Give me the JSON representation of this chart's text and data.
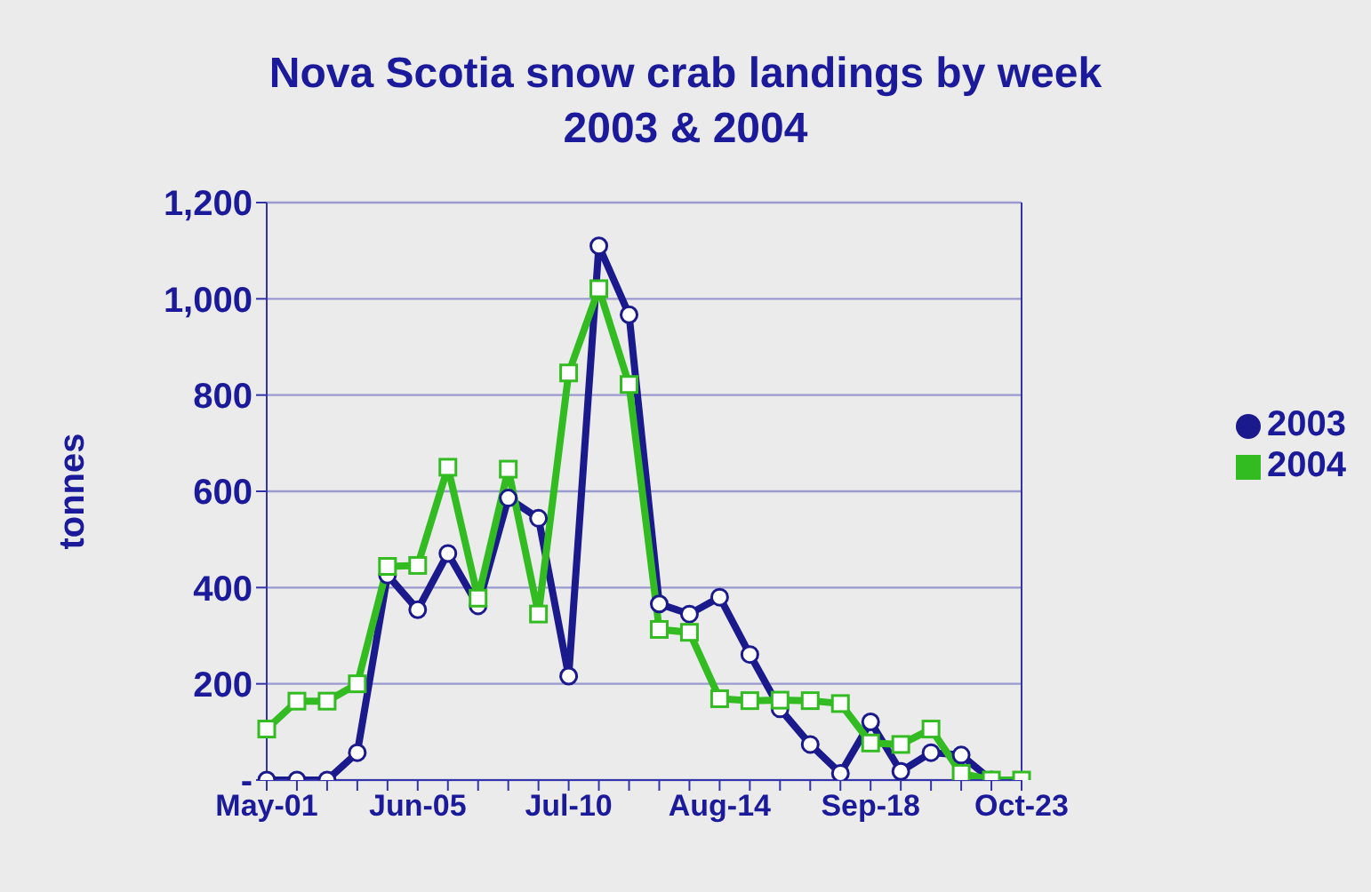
{
  "chart_data": {
    "type": "line",
    "title": "Nova Scotia snow crab landings by week",
    "subtitle": "2003 & 2004",
    "ylabel": "tonnes",
    "categories": [
      "May-01",
      null,
      null,
      null,
      null,
      "Jun-05",
      null,
      null,
      null,
      null,
      "Jul-10",
      null,
      null,
      null,
      null,
      "Aug-14",
      null,
      null,
      null,
      null,
      "Sep-18",
      null,
      null,
      null,
      null,
      "Oct-23"
    ],
    "series": [
      {
        "name": "2003",
        "color": "#1a1a8c",
        "marker": "circle",
        "values": [
          0,
          0,
          0,
          57,
          426,
          354,
          471,
          362,
          586,
          544,
          216,
          1110,
          967,
          366,
          345,
          380,
          261,
          148,
          74,
          14,
          121,
          18,
          57,
          52,
          0,
          null
        ]
      },
      {
        "name": "2004",
        "color": "#33bb22",
        "marker": "square",
        "values": [
          106,
          164,
          164,
          200,
          444,
          446,
          650,
          378,
          646,
          345,
          846,
          1021,
          822,
          313,
          307,
          169,
          165,
          166,
          165,
          159,
          77,
          74,
          106,
          14,
          0,
          0
        ]
      }
    ],
    "ylim": [
      0,
      1200
    ],
    "yticks": [
      {
        "value": 0,
        "label": "-"
      },
      200,
      400,
      600,
      800,
      {
        "value": 1000,
        "label": "1,000"
      },
      {
        "value": 1200,
        "label": "1,200"
      }
    ],
    "grid": "y",
    "legend": "right",
    "line_style": "solid"
  }
}
